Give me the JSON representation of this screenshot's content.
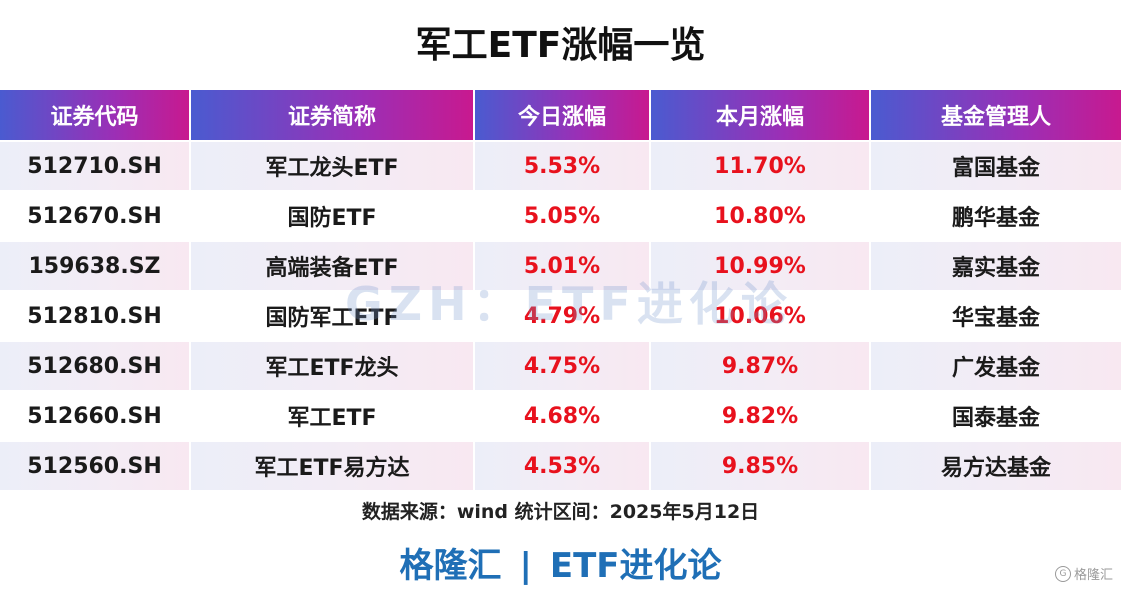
{
  "title": "军工ETF涨幅一览",
  "table": {
    "headers": [
      "证券代码",
      "证券简称",
      "今日涨幅",
      "本月涨幅",
      "基金管理人"
    ],
    "rows": [
      {
        "code": "512710.SH",
        "name": "军工龙头ETF",
        "today": "5.53%",
        "month": "11.70%",
        "manager": "富国基金"
      },
      {
        "code": "512670.SH",
        "name": "国防ETF",
        "today": "5.05%",
        "month": "10.80%",
        "manager": "鹏华基金"
      },
      {
        "code": "159638.SZ",
        "name": "高端装备ETF",
        "today": "5.01%",
        "month": "10.99%",
        "manager": "嘉实基金"
      },
      {
        "code": "512810.SH",
        "name": "国防军工ETF",
        "today": "4.79%",
        "month": "10.06%",
        "manager": "华宝基金"
      },
      {
        "code": "512680.SH",
        "name": "军工ETF龙头",
        "today": "4.75%",
        "month": "9.87%",
        "manager": "广发基金"
      },
      {
        "code": "512660.SH",
        "name": "军工ETF",
        "today": "4.68%",
        "month": "9.82%",
        "manager": "国泰基金"
      },
      {
        "code": "512560.SH",
        "name": "军工ETF易方达",
        "today": "4.53%",
        "month": "9.85%",
        "manager": "易方达基金"
      }
    ]
  },
  "watermark": "GZH：ETF进化论",
  "source_note": "数据来源：wind  统计区间：2025年5月12日",
  "brand": {
    "left": "格隆汇",
    "separator": "|",
    "right": "ETF进化论"
  },
  "corner_mark": {
    "logo": "G",
    "text": "格隆汇"
  },
  "colors": {
    "header_start": "#4a5bd0",
    "header_end": "#c8198f",
    "positive": "#e8111d",
    "brand": "#1f6fb6"
  }
}
